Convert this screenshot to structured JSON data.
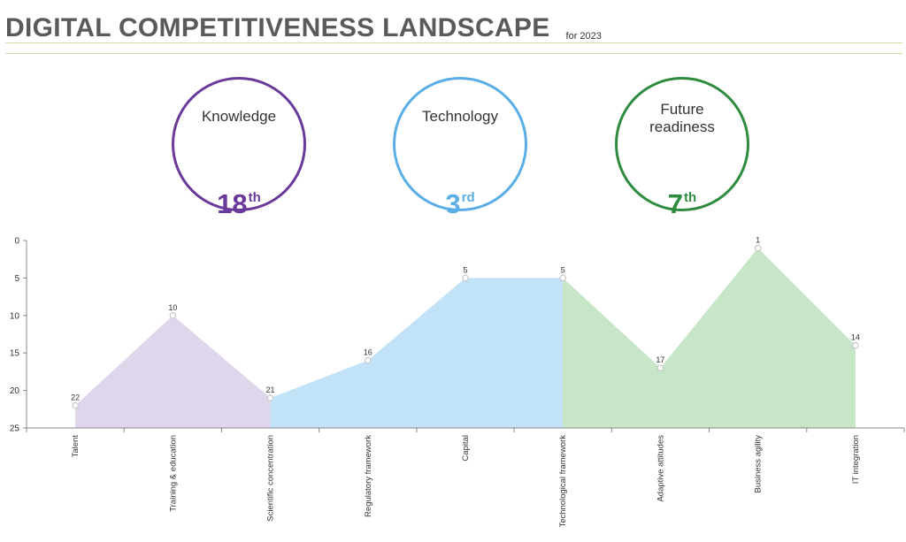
{
  "header": {
    "title": "DIGITAL COMPETITIVENESS LANDSCAPE",
    "subtitle": "for 2023"
  },
  "factors": [
    {
      "label": "Knowledge",
      "rank": "18",
      "suffix": "th",
      "color": "#6a3a9a"
    },
    {
      "label": "Technology",
      "rank": "3",
      "suffix": "rd",
      "color": "#5aaee6"
    },
    {
      "label": "Future readiness",
      "rank": "7",
      "suffix": "th",
      "color": "#2e8b3e"
    }
  ],
  "chart_data": {
    "type": "area",
    "title": "",
    "xlabel": "",
    "ylabel": "",
    "ylim": [
      0,
      25
    ],
    "y_inverted": true,
    "yticks": [
      0,
      5,
      10,
      15,
      20,
      25
    ],
    "grid": false,
    "categories": [
      "Talent",
      "Training & education",
      "Scientific concentration",
      "Regulatory framework",
      "Capital",
      "Technological framework",
      "Adaptive attitudes",
      "Business agility",
      "IT integration"
    ],
    "values": [
      22,
      10,
      21,
      16,
      5,
      5,
      17,
      1,
      14
    ],
    "series": [
      {
        "name": "Knowledge",
        "from": 0,
        "to": 2,
        "color": "#e0d6ec"
      },
      {
        "name": "Technology",
        "from": 2,
        "to": 5,
        "color": "#c2e3f7"
      },
      {
        "name": "Future readiness",
        "from": 5,
        "to": 8,
        "color": "#c7e5c7"
      }
    ]
  }
}
